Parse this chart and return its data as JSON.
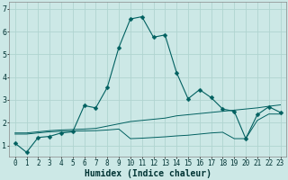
{
  "title": "",
  "xlabel": "Humidex (Indice chaleur)",
  "bg_color": "#cce8e6",
  "grid_color": "#b0d4d0",
  "line_color": "#006060",
  "xlim": [
    -0.5,
    23.5
  ],
  "ylim": [
    0.5,
    7.3
  ],
  "yticks": [
    1,
    2,
    3,
    4,
    5,
    6,
    7
  ],
  "xticks": [
    0,
    1,
    2,
    3,
    4,
    5,
    6,
    7,
    8,
    9,
    10,
    11,
    12,
    13,
    14,
    15,
    16,
    17,
    18,
    19,
    20,
    21,
    22,
    23
  ],
  "line1_x": [
    0,
    1,
    2,
    3,
    4,
    5,
    6,
    7,
    8,
    9,
    10,
    11,
    12,
    13,
    14,
    15,
    16,
    17,
    18,
    19,
    20,
    21,
    22,
    23
  ],
  "line1_y": [
    1.1,
    0.7,
    1.35,
    1.4,
    1.55,
    1.6,
    2.75,
    2.65,
    3.55,
    5.3,
    6.55,
    6.65,
    5.75,
    5.85,
    4.2,
    3.05,
    3.45,
    3.1,
    2.6,
    2.5,
    1.3,
    2.35,
    2.7,
    2.45
  ],
  "line2_x": [
    0,
    1,
    2,
    3,
    4,
    5,
    6,
    7,
    8,
    9,
    10,
    11,
    12,
    13,
    14,
    15,
    16,
    17,
    18,
    19,
    20,
    21,
    22,
    23
  ],
  "line2_y": [
    1.55,
    1.55,
    1.6,
    1.65,
    1.68,
    1.7,
    1.72,
    1.75,
    1.85,
    1.95,
    2.05,
    2.1,
    2.15,
    2.2,
    2.3,
    2.35,
    2.4,
    2.45,
    2.5,
    2.55,
    2.6,
    2.65,
    2.72,
    2.78
  ],
  "line3_x": [
    0,
    1,
    2,
    3,
    4,
    5,
    6,
    7,
    8,
    9,
    10,
    11,
    12,
    13,
    14,
    15,
    16,
    17,
    18,
    19,
    20,
    21,
    22,
    23
  ],
  "line3_y": [
    1.5,
    1.5,
    1.55,
    1.6,
    1.62,
    1.63,
    1.64,
    1.65,
    1.68,
    1.72,
    1.3,
    1.32,
    1.35,
    1.38,
    1.42,
    1.45,
    1.5,
    1.55,
    1.58,
    1.3,
    1.3,
    2.1,
    2.38,
    2.38
  ],
  "xlabel_fontsize": 7,
  "tick_fontsize": 5.5,
  "marker": "D",
  "marker_size": 2.5
}
